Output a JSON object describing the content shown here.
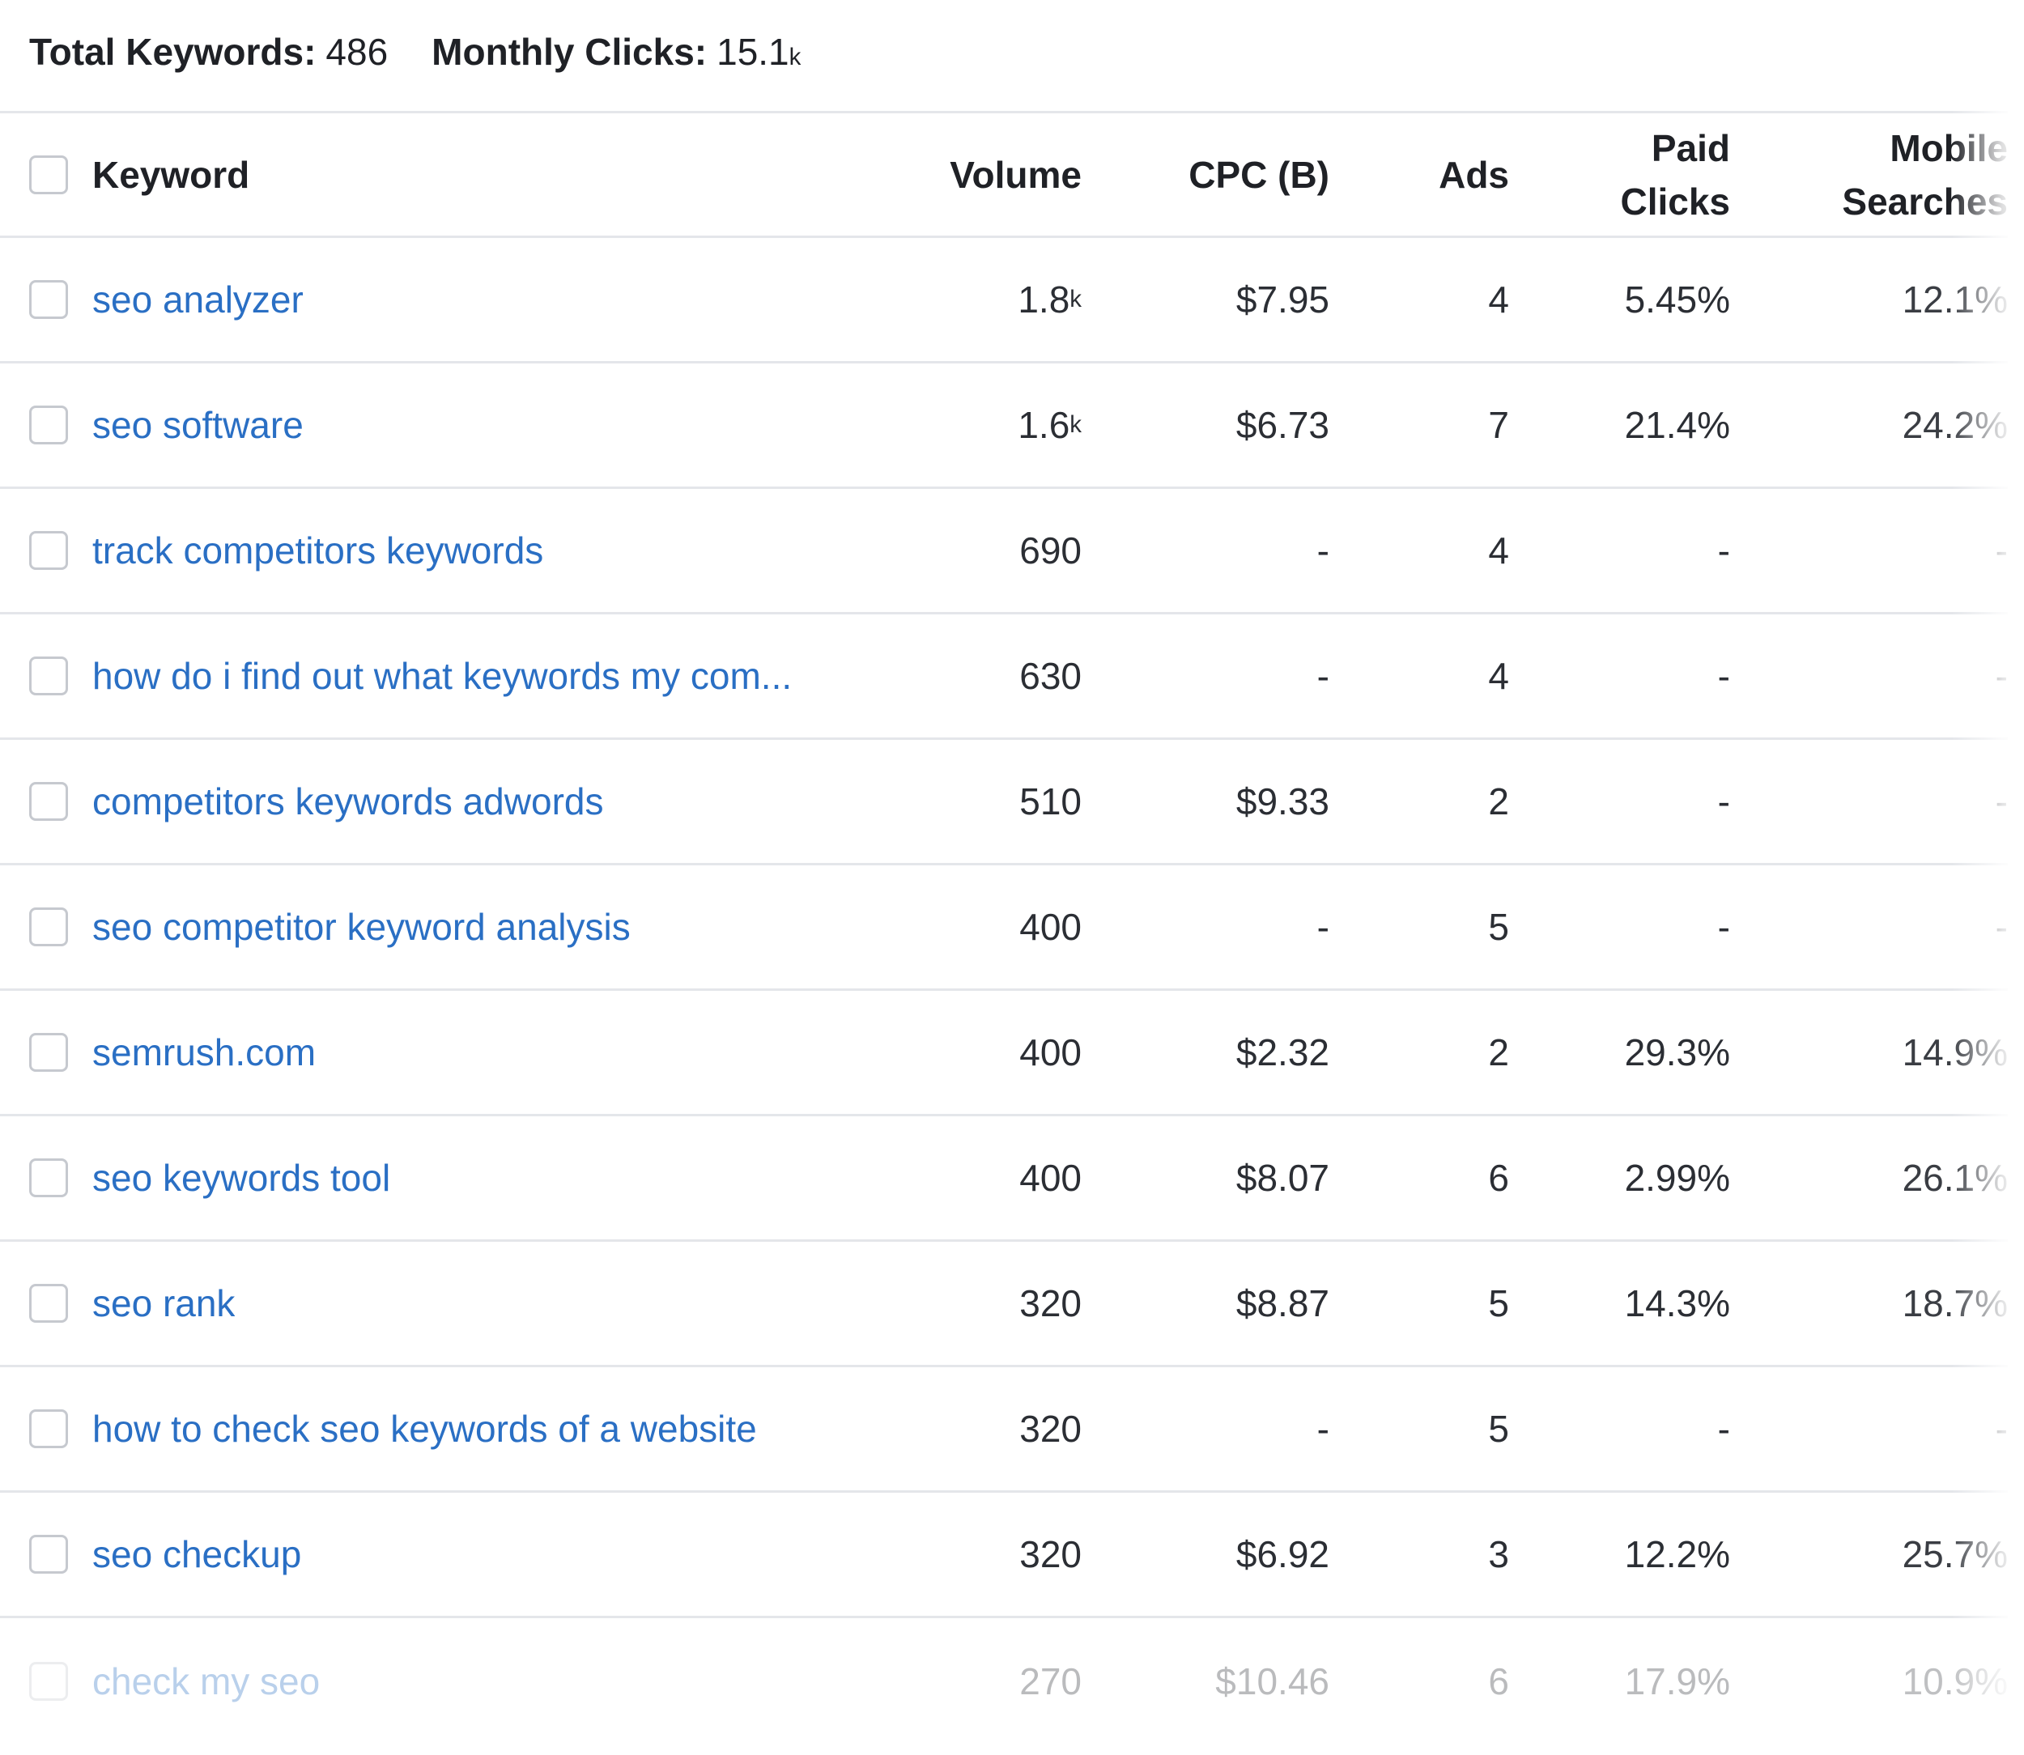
{
  "summary": {
    "total_keywords_label": "Total Keywords:",
    "total_keywords_value": "486",
    "monthly_clicks_label": "Monthly Clicks:",
    "monthly_clicks_value": "15.1",
    "monthly_clicks_suffix": "k"
  },
  "columns": {
    "keyword": "Keyword",
    "volume": "Volume",
    "cpc": "CPC (B)",
    "ads": "Ads",
    "paid_clicks_line1": "Paid",
    "paid_clicks_line2": "Clicks",
    "mobile_searches_line1": "Mobile",
    "mobile_searches_line2": "Searches"
  },
  "colors": {
    "link": "#2a6fc4",
    "border": "#e4e6ea",
    "text": "#1f2126"
  },
  "rows": [
    {
      "keyword": "seo analyzer",
      "volume": "1.8",
      "volume_suffix": "k",
      "cpc": "$7.95",
      "ads": "4",
      "paid_clicks": "5.45%",
      "mobile_searches": "12.1%"
    },
    {
      "keyword": "seo software",
      "volume": "1.6",
      "volume_suffix": "k",
      "cpc": "$6.73",
      "ads": "7",
      "paid_clicks": "21.4%",
      "mobile_searches": "24.2%"
    },
    {
      "keyword": "track competitors keywords",
      "volume": "690",
      "volume_suffix": "",
      "cpc": "-",
      "ads": "4",
      "paid_clicks": "-",
      "mobile_searches": "-"
    },
    {
      "keyword": "how do i find out what keywords my com...",
      "volume": "630",
      "volume_suffix": "",
      "cpc": "-",
      "ads": "4",
      "paid_clicks": "-",
      "mobile_searches": "-"
    },
    {
      "keyword": "competitors keywords adwords",
      "volume": "510",
      "volume_suffix": "",
      "cpc": "$9.33",
      "ads": "2",
      "paid_clicks": "-",
      "mobile_searches": "-"
    },
    {
      "keyword": "seo competitor keyword analysis",
      "volume": "400",
      "volume_suffix": "",
      "cpc": "-",
      "ads": "5",
      "paid_clicks": "-",
      "mobile_searches": "-"
    },
    {
      "keyword": "semrush.com",
      "volume": "400",
      "volume_suffix": "",
      "cpc": "$2.32",
      "ads": "2",
      "paid_clicks": "29.3%",
      "mobile_searches": "14.9%"
    },
    {
      "keyword": "seo keywords tool",
      "volume": "400",
      "volume_suffix": "",
      "cpc": "$8.07",
      "ads": "6",
      "paid_clicks": "2.99%",
      "mobile_searches": "26.1%"
    },
    {
      "keyword": "seo rank",
      "volume": "320",
      "volume_suffix": "",
      "cpc": "$8.87",
      "ads": "5",
      "paid_clicks": "14.3%",
      "mobile_searches": "18.7%"
    },
    {
      "keyword": "how to check seo keywords of a website",
      "volume": "320",
      "volume_suffix": "",
      "cpc": "-",
      "ads": "5",
      "paid_clicks": "-",
      "mobile_searches": "-"
    },
    {
      "keyword": "seo checkup",
      "volume": "320",
      "volume_suffix": "",
      "cpc": "$6.92",
      "ads": "3",
      "paid_clicks": "12.2%",
      "mobile_searches": "25.7%"
    },
    {
      "keyword": "check my seo",
      "volume": "270",
      "volume_suffix": "",
      "cpc": "$10.46",
      "ads": "6",
      "paid_clicks": "17.9%",
      "mobile_searches": "10.9%"
    }
  ]
}
